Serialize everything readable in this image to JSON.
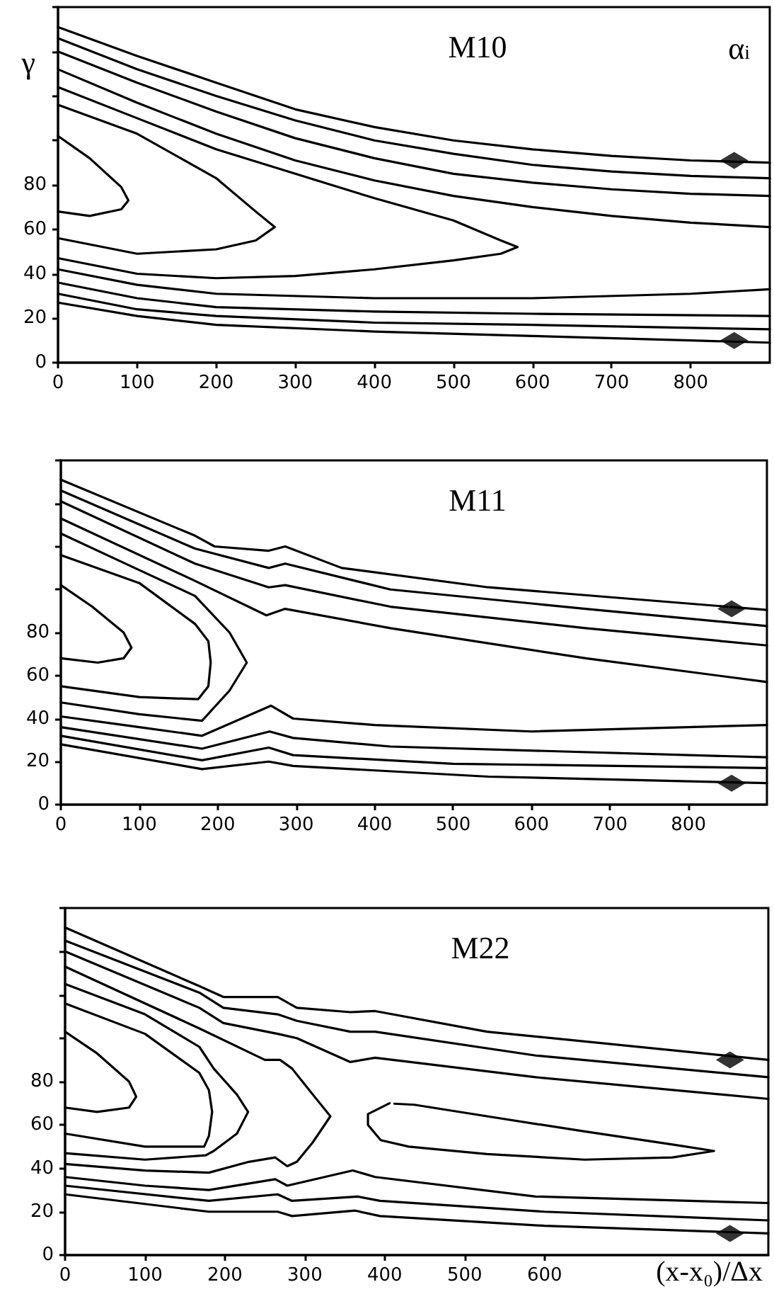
{
  "chart_data": [
    {
      "type": "line",
      "title": "M10",
      "ylabel": "γ",
      "annotations": [
        "α$_{i}$"
      ],
      "xlim": [
        0,
        900
      ],
      "xticks": [
        0,
        100,
        200,
        300,
        400,
        500,
        600,
        700,
        800
      ],
      "ylim": [
        0,
        160
      ],
      "yticks": [
        0,
        20,
        40,
        60,
        80,
        {
          "value": 100,
          "label": null
        },
        {
          "value": 120,
          "label": null
        },
        {
          "value": 140,
          "label": null
        },
        {
          "value": 160,
          "label": null
        }
      ],
      "series": [
        {
          "color": "#000000",
          "x": [
            0,
            100,
            200,
            300,
            400,
            500,
            600,
            700,
            800,
            900
          ],
          "values": [
            151,
            138,
            126,
            114,
            106,
            100,
            96,
            93,
            91,
            90
          ]
        },
        {
          "color": "#000000",
          "x": [
            0,
            100,
            200,
            300,
            400,
            500,
            600,
            700,
            800,
            900
          ],
          "values": [
            146,
            132,
            120,
            109,
            100,
            94,
            89,
            86,
            84,
            83
          ]
        },
        {
          "color": "#000000",
          "x": [
            0,
            100,
            200,
            300,
            400,
            500,
            600,
            700,
            800,
            900
          ],
          "values": [
            140,
            126,
            113,
            101,
            92,
            85,
            81,
            78,
            76,
            75
          ]
        },
        {
          "color": "#000000",
          "x": [
            0,
            100,
            200,
            300,
            400,
            500,
            600,
            700,
            800,
            900
          ],
          "values": [
            132,
            117,
            103,
            91,
            82,
            75,
            70,
            66,
            63,
            61
          ]
        },
        {
          "color": "#000000",
          "x": [
            0,
            100,
            200,
            300,
            400,
            500,
            560,
            581,
            560,
            500,
            400,
            300,
            200,
            100,
            0
          ],
          "values": [
            124,
            110,
            96,
            85,
            74,
            64,
            55,
            52,
            49,
            46,
            42,
            39,
            38,
            40,
            47
          ]
        },
        {
          "color": "#000000",
          "x": [
            0,
            100,
            200,
            250,
            274,
            250,
            200,
            100,
            0
          ],
          "values": [
            116,
            103,
            83,
            68,
            61,
            55,
            51,
            49,
            56
          ]
        },
        {
          "color": "#000000",
          "x": [
            0,
            40,
            80,
            89,
            80,
            40,
            0
          ],
          "values": [
            102,
            92,
            79,
            73,
            69,
            66,
            68
          ]
        },
        {
          "color": "#000000",
          "x": [
            0,
            100,
            200,
            400,
            600,
            800,
            900
          ],
          "values": [
            42,
            35,
            31,
            29,
            29,
            31,
            33
          ]
        },
        {
          "color": "#000000",
          "x": [
            0,
            100,
            200,
            400,
            600,
            900
          ],
          "values": [
            36,
            29,
            25,
            23,
            22,
            21
          ]
        },
        {
          "color": "#000000",
          "x": [
            0,
            100,
            200,
            400,
            600,
            900
          ],
          "values": [
            31,
            24,
            21,
            18,
            17,
            15
          ]
        },
        {
          "color": "#000000",
          "x": [
            0,
            100,
            200,
            400,
            600,
            800,
            900
          ],
          "values": [
            27,
            21,
            17,
            14,
            12,
            10,
            9
          ]
        },
        {
          "type": "scatter",
          "marker": "diamond",
          "color": "#000000",
          "x": [
            855,
            855
          ],
          "values": [
            91,
            10
          ]
        }
      ]
    },
    {
      "type": "line",
      "title": "M11",
      "xlim": [
        0,
        900
      ],
      "xticks": [
        0,
        100,
        200,
        300,
        400,
        500,
        600,
        700,
        800
      ],
      "ylim": [
        0,
        160
      ],
      "yticks": [
        0,
        20,
        40,
        60,
        80,
        {
          "value": 100,
          "label": null
        },
        {
          "value": 120,
          "label": null
        },
        {
          "value": 140,
          "label": null
        },
        {
          "value": 160,
          "label": null
        }
      ],
      "series": [
        {
          "color": "#000000",
          "x": [
            0,
            171,
            196,
            265,
            286,
            358,
            545,
            900
          ],
          "values": [
            151,
            125,
            120,
            118,
            120,
            110,
            101,
            90.5
          ]
        },
        {
          "color": "#000000",
          "x": [
            0,
            171,
            265,
            286,
            420,
            669,
            900
          ],
          "values": [
            146,
            119,
            110,
            112,
            100,
            91,
            83
          ]
        },
        {
          "color": "#000000",
          "x": [
            0,
            171,
            265,
            286,
            420,
            669,
            900
          ],
          "values": [
            141,
            112,
            101,
            102,
            92,
            82,
            74
          ]
        },
        {
          "color": "#000000",
          "x": [
            0,
            171,
            262,
            286,
            420,
            669,
            900
          ],
          "values": [
            133,
            104,
            88,
            91,
            82,
            68,
            57
          ]
        },
        {
          "color": "#000000",
          "x": [
            0,
            100,
            171,
            215,
            237,
            215,
            180,
            100,
            0
          ],
          "values": [
            126,
            109,
            97,
            80,
            66,
            53,
            39,
            42,
            47.5
          ]
        },
        {
          "color": "#000000",
          "x": [
            0,
            100,
            171,
            188,
            191,
            188,
            175,
            100,
            0
          ],
          "values": [
            116,
            103,
            84,
            76,
            66,
            55,
            49,
            50,
            55
          ]
        },
        {
          "color": "#000000",
          "x": [
            0,
            40,
            80,
            90,
            80,
            47,
            0
          ],
          "values": [
            102,
            92,
            80,
            73,
            68,
            66,
            68
          ]
        },
        {
          "color": "#000000",
          "x": [
            0,
            100,
            180,
            268,
            296,
            400,
            600,
            900
          ],
          "values": [
            41,
            36,
            32,
            46,
            40,
            37,
            34,
            37
          ]
        },
        {
          "color": "#000000",
          "x": [
            0,
            180,
            266,
            296,
            420,
            900
          ],
          "values": [
            36,
            26,
            34,
            31,
            27,
            22
          ]
        },
        {
          "color": "#000000",
          "x": [
            0,
            180,
            265,
            296,
            500,
            900
          ],
          "values": [
            32,
            20.6,
            26.5,
            23,
            19,
            17
          ]
        },
        {
          "color": "#000000",
          "x": [
            0,
            180,
            265,
            296,
            545,
            900
          ],
          "values": [
            28,
            16.5,
            20,
            18,
            13,
            10
          ]
        },
        {
          "type": "scatter",
          "marker": "diamond",
          "color": "#000000",
          "x": [
            855,
            855
          ],
          "values": [
            91,
            10
          ]
        }
      ]
    },
    {
      "type": "line",
      "title": "M22",
      "xlabel": "(x-x₀)/Δx",
      "xlim": [
        0,
        880
      ],
      "xticks": [
        0,
        100,
        200,
        300,
        400,
        500,
        600
      ],
      "ylim": [
        0,
        160
      ],
      "yticks": [
        0,
        20,
        40,
        60,
        80,
        {
          "value": 100,
          "label": null
        },
        {
          "value": 120,
          "label": null
        },
        {
          "value": 140,
          "label": null
        },
        {
          "value": 160,
          "label": null
        }
      ],
      "series": [
        {
          "color": "#000000",
          "x": [
            0,
            168,
            198,
            266,
            290,
            357,
            388,
            528,
            880
          ],
          "values": [
            151,
            124,
            119,
            119,
            114,
            112,
            112.5,
            103,
            90
          ]
        },
        {
          "color": "#000000",
          "x": [
            0,
            168,
            198,
            266,
            290,
            357,
            388,
            589,
            880
          ],
          "values": [
            145,
            121,
            114,
            111,
            108,
            103,
            103,
            92,
            82
          ]
        },
        {
          "color": "#000000",
          "x": [
            0,
            168,
            198,
            266,
            290,
            357,
            388,
            589,
            880
          ],
          "values": [
            140,
            114,
            107,
            102,
            100,
            89,
            91,
            82,
            72
          ]
        },
        {
          "color": "#000000",
          "x": [
            0,
            168,
            250,
            269,
            284,
            310,
            332,
            310,
            290,
            278,
            263,
            230,
            180,
            100,
            0
          ],
          "values": [
            133,
            104.5,
            90,
            90,
            86,
            74,
            64,
            52,
            43,
            41,
            45,
            43,
            38,
            39,
            42
          ]
        },
        {
          "color": "#000000",
          "x": [
            0,
            100,
            168,
            186,
            215,
            229,
            215,
            186,
            176,
            100,
            0
          ],
          "values": [
            125,
            111,
            96,
            86,
            74,
            66,
            56,
            48,
            46,
            44,
            47
          ]
        },
        {
          "color": "#000000",
          "x": [
            0,
            100,
            168,
            180,
            184,
            180,
            174,
            100,
            0
          ],
          "values": [
            116,
            102,
            84,
            76,
            66,
            55,
            50,
            50,
            56
          ]
        },
        {
          "color": "#000000",
          "x": [
            0,
            40,
            80,
            89,
            80,
            40,
            0
          ],
          "values": [
            103,
            93,
            80,
            73,
            68,
            66,
            68
          ]
        },
        {
          "color": "#000000",
          "x": [
            406,
            379,
            379,
            395,
            430,
            528,
            650,
            760,
            812,
            760,
            650,
            528,
            437,
            412
          ],
          "values": [
            70,
            65,
            60,
            53,
            50,
            46.6,
            44,
            45,
            48,
            51,
            57,
            64,
            69.3,
            69.8
          ]
        },
        {
          "color": "#000000",
          "x": [
            0,
            100,
            180,
            263,
            278,
            360,
            388,
            589,
            880
          ],
          "values": [
            36,
            32,
            30,
            35,
            32,
            39,
            36,
            27,
            24
          ]
        },
        {
          "color": "#000000",
          "x": [
            0,
            180,
            266,
            284,
            366,
            394,
            600,
            880
          ],
          "values": [
            32,
            25,
            28,
            25,
            27,
            25,
            20,
            16
          ]
        },
        {
          "color": "#000000",
          "x": [
            0,
            180,
            266,
            284,
            363,
            394,
            600,
            880
          ],
          "values": [
            28,
            20,
            20,
            18,
            20.5,
            18,
            13.5,
            10
          ]
        },
        {
          "type": "scatter",
          "marker": "diamond",
          "color": "#000000",
          "x": [
            832,
            832
          ],
          "values": [
            90,
            10
          ]
        }
      ]
    }
  ]
}
